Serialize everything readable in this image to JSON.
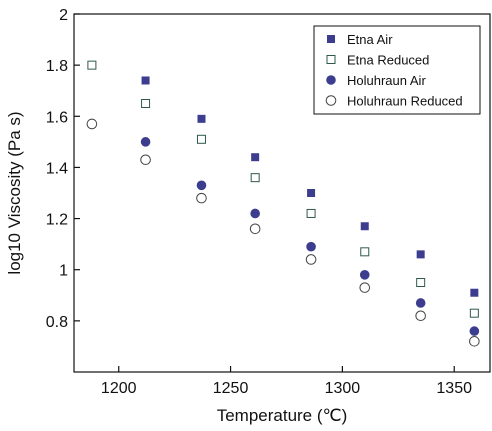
{
  "chart_data": {
    "type": "scatter",
    "xlabel": "Temperature (℃)",
    "ylabel": "log10 Viscosity (Pa s)",
    "xlim": [
      1180,
      1366
    ],
    "ylim": [
      0.6,
      2.0
    ],
    "xticks": [
      1200,
      1250,
      1300,
      1350
    ],
    "yticks": [
      0.8,
      1.0,
      1.2,
      1.4,
      1.6,
      1.8,
      2.0
    ],
    "xtick_labels": [
      "1200",
      "1250",
      "1300",
      "1350"
    ],
    "ytick_labels": [
      "0.8",
      "1",
      "1.2",
      "1.4",
      "1.6",
      "1.8",
      "2"
    ],
    "legend_position": "top-right",
    "grid": false,
    "series": [
      {
        "name": "Etna Air",
        "marker": "filled-square",
        "color": "#3d3d8f",
        "x": [
          1212,
          1237,
          1261,
          1286,
          1310,
          1335,
          1359
        ],
        "y": [
          1.74,
          1.59,
          1.44,
          1.3,
          1.17,
          1.06,
          0.91
        ]
      },
      {
        "name": "Etna Reduced",
        "marker": "open-square",
        "color": "#2f5a4a",
        "x": [
          1188,
          1212,
          1237,
          1261,
          1286,
          1310,
          1335,
          1359
        ],
        "y": [
          1.8,
          1.65,
          1.51,
          1.36,
          1.22,
          1.07,
          0.95,
          0.83
        ]
      },
      {
        "name": "Holuhraun Air",
        "marker": "filled-circle",
        "color": "#3d3d8f",
        "x": [
          1212,
          1237,
          1261,
          1286,
          1310,
          1335,
          1359
        ],
        "y": [
          1.5,
          1.33,
          1.22,
          1.09,
          0.98,
          0.87,
          0.76
        ]
      },
      {
        "name": "Holuhraun Reduced",
        "marker": "open-circle",
        "color": "#444444",
        "x": [
          1188,
          1212,
          1237,
          1261,
          1286,
          1310,
          1335,
          1359
        ],
        "y": [
          1.57,
          1.43,
          1.28,
          1.16,
          1.04,
          0.93,
          0.82,
          0.72
        ]
      }
    ]
  }
}
